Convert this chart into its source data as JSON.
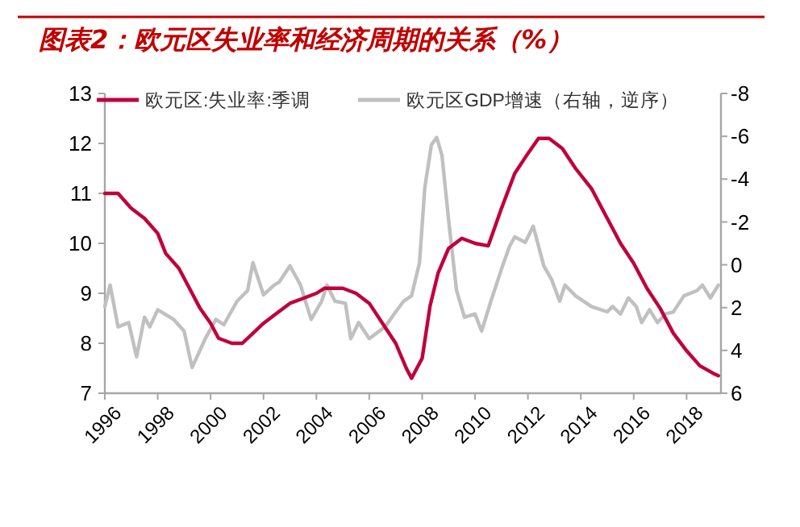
{
  "chart_data": {
    "type": "line",
    "title": "图表2：欧元区失业率和经济周期的关系（%）",
    "xlim": [
      1996,
      2019.3
    ],
    "xticks": [
      1996,
      1998,
      2000,
      2002,
      2004,
      2006,
      2008,
      2010,
      2012,
      2014,
      2016,
      2018
    ],
    "ylim": [
      7,
      13
    ],
    "yticks": [
      7,
      8,
      9,
      10,
      11,
      12,
      13
    ],
    "y2lim": [
      6,
      -8
    ],
    "y2ticks": [
      6,
      4,
      2,
      0,
      -2,
      -4,
      -6,
      -8
    ],
    "legend": "top",
    "grid": false,
    "marker": "none",
    "line_style": "solid",
    "series": [
      {
        "name": "欧元区:失业率:季调",
        "color": "#c0003c",
        "x": [
          1996,
          1996.5,
          1997,
          1997.5,
          1998,
          1998.3,
          1998.8,
          1999.2,
          1999.6,
          2000,
          2000.3,
          2000.8,
          2001.2,
          2001.6,
          2002,
          2002.5,
          2003,
          2003.5,
          2004,
          2004.3,
          2005,
          2005.5,
          2006,
          2006.5,
          2007,
          2007.4,
          2007.6,
          2007.8,
          2008,
          2008.3,
          2008.6,
          2009,
          2009.5,
          2010,
          2010.5,
          2011,
          2011.5,
          2012,
          2012.4,
          2012.8,
          2013.3,
          2013.8,
          2014.4,
          2015,
          2015.5,
          2016,
          2016.5,
          2017,
          2017.5,
          2018,
          2018.5,
          2019,
          2019.2
        ],
        "values": [
          11.0,
          11.0,
          10.7,
          10.5,
          10.2,
          9.8,
          9.5,
          9.1,
          8.7,
          8.4,
          8.1,
          8.0,
          8.0,
          8.2,
          8.4,
          8.6,
          8.8,
          8.9,
          9.0,
          9.1,
          9.1,
          9.0,
          8.8,
          8.4,
          8.0,
          7.5,
          7.3,
          7.5,
          7.7,
          8.75,
          9.4,
          9.9,
          10.1,
          10.0,
          9.95,
          10.7,
          11.4,
          11.8,
          12.1,
          12.1,
          11.9,
          11.5,
          11.1,
          10.5,
          10.0,
          9.6,
          9.1,
          8.7,
          8.2,
          7.85,
          7.55,
          7.4,
          7.35
        ]
      },
      {
        "name": "欧元区GDP增速（右轴，逆序）",
        "color": "#c0c0c0",
        "axis": "y2",
        "x": [
          1996,
          1996.2,
          1996.5,
          1996.9,
          1997.2,
          1997.5,
          1997.7,
          1998,
          1998.6,
          1999,
          1999.3,
          1999.8,
          2000.2,
          2000.5,
          2001,
          2001.4,
          2001.6,
          2002,
          2002.4,
          2002.6,
          2003,
          2003.4,
          2003.8,
          2004.2,
          2004.4,
          2004.7,
          2005.1,
          2005.3,
          2005.6,
          2006,
          2006.6,
          2007,
          2007.3,
          2007.6,
          2007.9,
          2008.1,
          2008.35,
          2008.55,
          2008.75,
          2009,
          2009.3,
          2009.6,
          2010,
          2010.25,
          2010.6,
          2011,
          2011.3,
          2011.5,
          2011.9,
          2012.2,
          2012.6,
          2012.9,
          2013.2,
          2013.4,
          2013.8,
          2014.4,
          2015,
          2015.2,
          2015.5,
          2015.8,
          2016.1,
          2016.3,
          2016.6,
          2016.9,
          2017.2,
          2017.5,
          2017.9,
          2018.4,
          2018.6,
          2018.9,
          2019.2
        ],
        "values": [
          1.95,
          0.95,
          2.9,
          2.7,
          4.3,
          2.45,
          2.9,
          2.1,
          2.55,
          3.1,
          4.8,
          3.45,
          2.55,
          2.8,
          1.7,
          1.2,
          -0.1,
          1.4,
          0.95,
          0.8,
          0.05,
          0.95,
          2.55,
          1.7,
          0.95,
          1.7,
          1.8,
          3.45,
          2.7,
          3.45,
          2.9,
          2.2,
          1.7,
          1.45,
          -0.1,
          -3.6,
          -5.6,
          -5.95,
          -5.1,
          -2.1,
          1.2,
          2.45,
          2.3,
          3.1,
          1.7,
          0.2,
          -0.85,
          -1.3,
          -1.05,
          -1.8,
          0.05,
          0.7,
          1.7,
          0.95,
          1.45,
          1.95,
          2.2,
          1.95,
          2.3,
          1.55,
          1.95,
          2.7,
          2.1,
          2.7,
          2.3,
          2.2,
          1.45,
          1.2,
          0.95,
          1.55,
          0.95
        ]
      }
    ]
  }
}
